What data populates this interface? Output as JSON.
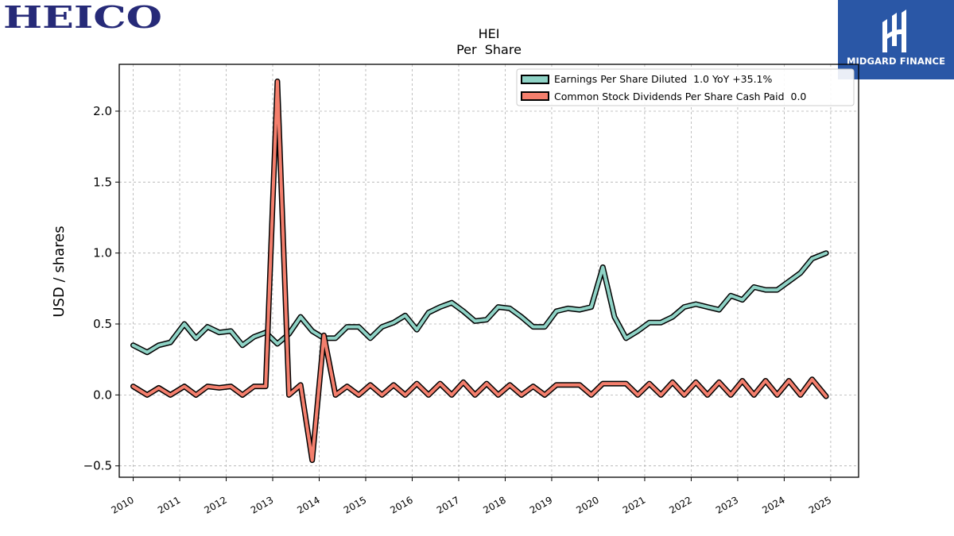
{
  "brand": {
    "company_logo_text": "HEICO",
    "publisher_name": "MIDGARD FINANCE"
  },
  "chart_data": {
    "type": "line",
    "title": "HEI",
    "subtitle": "Per  Share",
    "xlabel": "",
    "ylabel": "USD / shares",
    "xlim": [
      2009.7,
      2025.6
    ],
    "ylim": [
      -0.58,
      2.33
    ],
    "x_ticks": [
      2010,
      2011,
      2012,
      2013,
      2014,
      2015,
      2016,
      2017,
      2018,
      2019,
      2020,
      2021,
      2022,
      2023,
      2024,
      2025
    ],
    "y_ticks": [
      -0.5,
      0.0,
      0.5,
      1.0,
      1.5,
      2.0
    ],
    "y_tick_labels": [
      "−0.5",
      "0.0",
      "0.5",
      "1.0",
      "1.5",
      "2.0"
    ],
    "grid": true,
    "legend_position": "top-right",
    "colors": {
      "eps": "#8fd3c6",
      "dividends": "#f47f6d",
      "outline": "#000000",
      "grid": "#b0b0b0"
    },
    "series": [
      {
        "name": "Earnings Per Share Diluted  1.0 YoY +35.1%",
        "color": "#8fd3c6",
        "points": [
          [
            2010.0,
            0.35
          ],
          [
            2010.3,
            0.3
          ],
          [
            2010.55,
            0.35
          ],
          [
            2010.8,
            0.37
          ],
          [
            2011.1,
            0.5
          ],
          [
            2011.35,
            0.4
          ],
          [
            2011.6,
            0.48
          ],
          [
            2011.85,
            0.44
          ],
          [
            2012.1,
            0.45
          ],
          [
            2012.35,
            0.35
          ],
          [
            2012.6,
            0.41
          ],
          [
            2012.85,
            0.44
          ],
          [
            2013.1,
            0.36
          ],
          [
            2013.35,
            0.43
          ],
          [
            2013.6,
            0.55
          ],
          [
            2013.85,
            0.45
          ],
          [
            2014.1,
            0.4
          ],
          [
            2014.35,
            0.4
          ],
          [
            2014.6,
            0.48
          ],
          [
            2014.85,
            0.48
          ],
          [
            2015.1,
            0.4
          ],
          [
            2015.35,
            0.48
          ],
          [
            2015.6,
            0.51
          ],
          [
            2015.85,
            0.56
          ],
          [
            2016.1,
            0.46
          ],
          [
            2016.35,
            0.58
          ],
          [
            2016.6,
            0.62
          ],
          [
            2016.85,
            0.65
          ],
          [
            2017.1,
            0.59
          ],
          [
            2017.35,
            0.52
          ],
          [
            2017.6,
            0.53
          ],
          [
            2017.85,
            0.62
          ],
          [
            2018.1,
            0.61
          ],
          [
            2018.35,
            0.55
          ],
          [
            2018.6,
            0.48
          ],
          [
            2018.85,
            0.48
          ],
          [
            2019.1,
            0.59
          ],
          [
            2019.35,
            0.61
          ],
          [
            2019.6,
            0.6
          ],
          [
            2019.85,
            0.62
          ],
          [
            2020.1,
            0.9
          ],
          [
            2020.35,
            0.55
          ],
          [
            2020.6,
            0.4
          ],
          [
            2020.85,
            0.45
          ],
          [
            2021.1,
            0.51
          ],
          [
            2021.35,
            0.51
          ],
          [
            2021.6,
            0.55
          ],
          [
            2021.85,
            0.62
          ],
          [
            2022.1,
            0.64
          ],
          [
            2022.35,
            0.62
          ],
          [
            2022.6,
            0.6
          ],
          [
            2022.85,
            0.7
          ],
          [
            2023.1,
            0.67
          ],
          [
            2023.35,
            0.76
          ],
          [
            2023.6,
            0.74
          ],
          [
            2023.85,
            0.74
          ],
          [
            2024.1,
            0.8
          ],
          [
            2024.35,
            0.86
          ],
          [
            2024.6,
            0.96
          ],
          [
            2024.9,
            1.0
          ]
        ]
      },
      {
        "name": "Common Stock Dividends Per Share Cash Paid  0.0",
        "color": "#f47f6d",
        "points": [
          [
            2010.0,
            0.06
          ],
          [
            2010.3,
            0.0
          ],
          [
            2010.55,
            0.05
          ],
          [
            2010.8,
            0.0
          ],
          [
            2011.1,
            0.06
          ],
          [
            2011.35,
            0.0
          ],
          [
            2011.6,
            0.06
          ],
          [
            2011.85,
            0.05
          ],
          [
            2012.1,
            0.06
          ],
          [
            2012.35,
            0.0
          ],
          [
            2012.6,
            0.06
          ],
          [
            2012.85,
            0.06
          ],
          [
            2013.1,
            2.21
          ],
          [
            2013.35,
            0.0
          ],
          [
            2013.6,
            0.07
          ],
          [
            2013.85,
            -0.46
          ],
          [
            2014.1,
            0.42
          ],
          [
            2014.35,
            0.0
          ],
          [
            2014.6,
            0.06
          ],
          [
            2014.85,
            0.0
          ],
          [
            2015.1,
            0.07
          ],
          [
            2015.35,
            0.0
          ],
          [
            2015.6,
            0.07
          ],
          [
            2015.85,
            0.0
          ],
          [
            2016.1,
            0.08
          ],
          [
            2016.35,
            0.0
          ],
          [
            2016.6,
            0.08
          ],
          [
            2016.85,
            0.0
          ],
          [
            2017.1,
            0.09
          ],
          [
            2017.35,
            0.0
          ],
          [
            2017.6,
            0.08
          ],
          [
            2017.85,
            0.0
          ],
          [
            2018.1,
            0.07
          ],
          [
            2018.35,
            0.0
          ],
          [
            2018.6,
            0.06
          ],
          [
            2018.85,
            0.0
          ],
          [
            2019.1,
            0.07
          ],
          [
            2019.35,
            0.07
          ],
          [
            2019.6,
            0.07
          ],
          [
            2019.85,
            0.0
          ],
          [
            2020.1,
            0.08
          ],
          [
            2020.35,
            0.08
          ],
          [
            2020.6,
            0.08
          ],
          [
            2020.85,
            0.0
          ],
          [
            2021.1,
            0.08
          ],
          [
            2021.35,
            0.0
          ],
          [
            2021.6,
            0.09
          ],
          [
            2021.85,
            0.0
          ],
          [
            2022.1,
            0.09
          ],
          [
            2022.35,
            0.0
          ],
          [
            2022.6,
            0.09
          ],
          [
            2022.85,
            0.0
          ],
          [
            2023.1,
            0.1
          ],
          [
            2023.35,
            0.0
          ],
          [
            2023.6,
            0.1
          ],
          [
            2023.85,
            0.0
          ],
          [
            2024.1,
            0.1
          ],
          [
            2024.35,
            0.0
          ],
          [
            2024.6,
            0.11
          ],
          [
            2024.9,
            -0.01
          ]
        ]
      }
    ]
  }
}
